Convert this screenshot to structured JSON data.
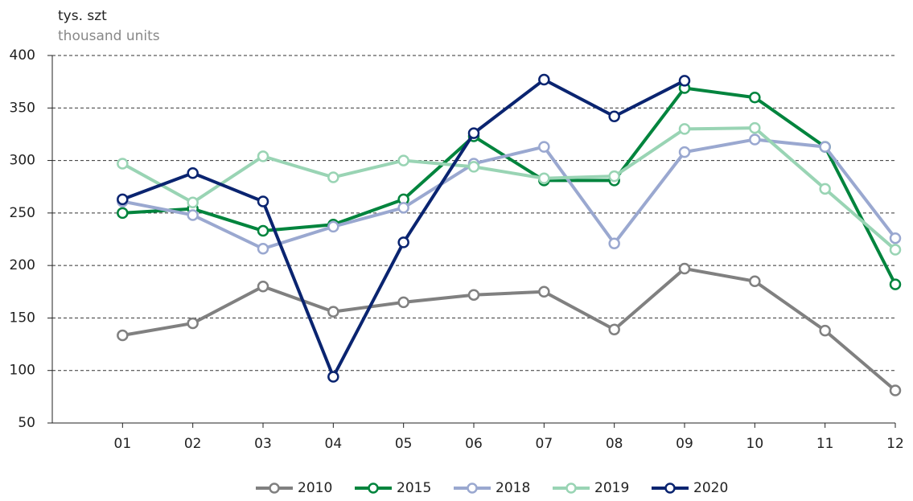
{
  "chart_data": {
    "type": "line",
    "unit_label": "tys. szt",
    "unit_label_en": "thousand units",
    "categories": [
      "01",
      "02",
      "03",
      "04",
      "05",
      "06",
      "07",
      "08",
      "09",
      "10",
      "11",
      "12"
    ],
    "series": [
      {
        "name": "2010",
        "color": "#808080",
        "values": [
          133.5,
          145,
          180,
          156,
          165,
          172,
          175,
          139,
          197,
          185,
          138,
          81
        ]
      },
      {
        "name": "2015",
        "color": "#00843d",
        "values": [
          250,
          254,
          233,
          239,
          263,
          323,
          281,
          281,
          369,
          360,
          313,
          182
        ]
      },
      {
        "name": "2018",
        "color": "#9aa8d0",
        "values": [
          261,
          248,
          216,
          237,
          255,
          297,
          313,
          221,
          308,
          320,
          313,
          226
        ]
      },
      {
        "name": "2019",
        "color": "#99d4b4",
        "values": [
          297,
          260,
          304,
          284,
          300,
          294,
          283,
          285,
          330,
          331,
          273,
          215
        ]
      },
      {
        "name": "2020",
        "color": "#0a2470",
        "values": [
          263,
          288,
          261,
          94,
          222,
          326,
          377,
          342,
          376,
          null,
          null,
          null
        ]
      }
    ],
    "ylim": [
      50,
      400
    ],
    "yticks": [
      50,
      100,
      150,
      200,
      250,
      300,
      350,
      400
    ],
    "grid": true
  }
}
